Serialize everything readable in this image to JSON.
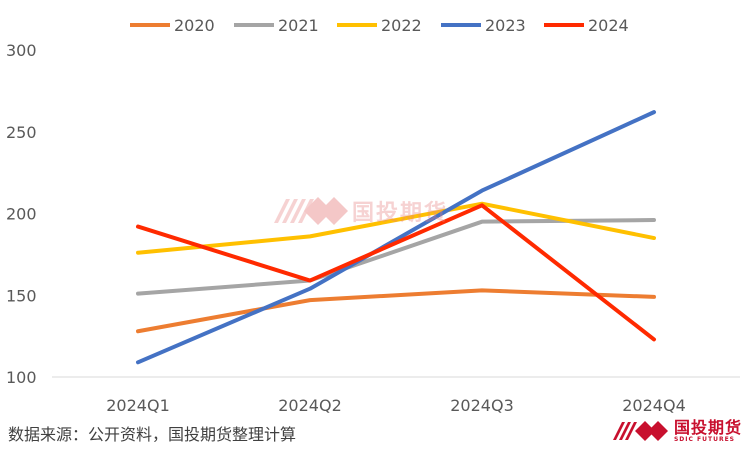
{
  "chart_data": {
    "type": "line",
    "categories": [
      "2024Q1",
      "2024Q2",
      "2024Q3",
      "2024Q4"
    ],
    "ylim": [
      100,
      300
    ],
    "yticks": [
      100,
      150,
      200,
      250,
      300
    ],
    "grid": false,
    "legend_position": "top",
    "series": [
      {
        "name": "2020",
        "color": "#ED7D31",
        "values": [
          128,
          147,
          153,
          149
        ]
      },
      {
        "name": "2021",
        "color": "#A5A5A5",
        "values": [
          151,
          159,
          195,
          196
        ]
      },
      {
        "name": "2022",
        "color": "#FFC000",
        "values": [
          176,
          186,
          206,
          185
        ]
      },
      {
        "name": "2023",
        "color": "#4472C4",
        "values": [
          109,
          154,
          214,
          262
        ]
      },
      {
        "name": "2024",
        "color": "#FF2A00",
        "values": [
          192,
          159,
          205,
          123
        ]
      }
    ]
  },
  "source": "数据来源：公开资料，国投期货整理计算",
  "logo": {
    "name_cn": "国投期货",
    "name_en": "SDIC FUTURES"
  },
  "watermark": {
    "name_cn": "国投期货",
    "icon": "sdic-diamond-logo-icon"
  }
}
